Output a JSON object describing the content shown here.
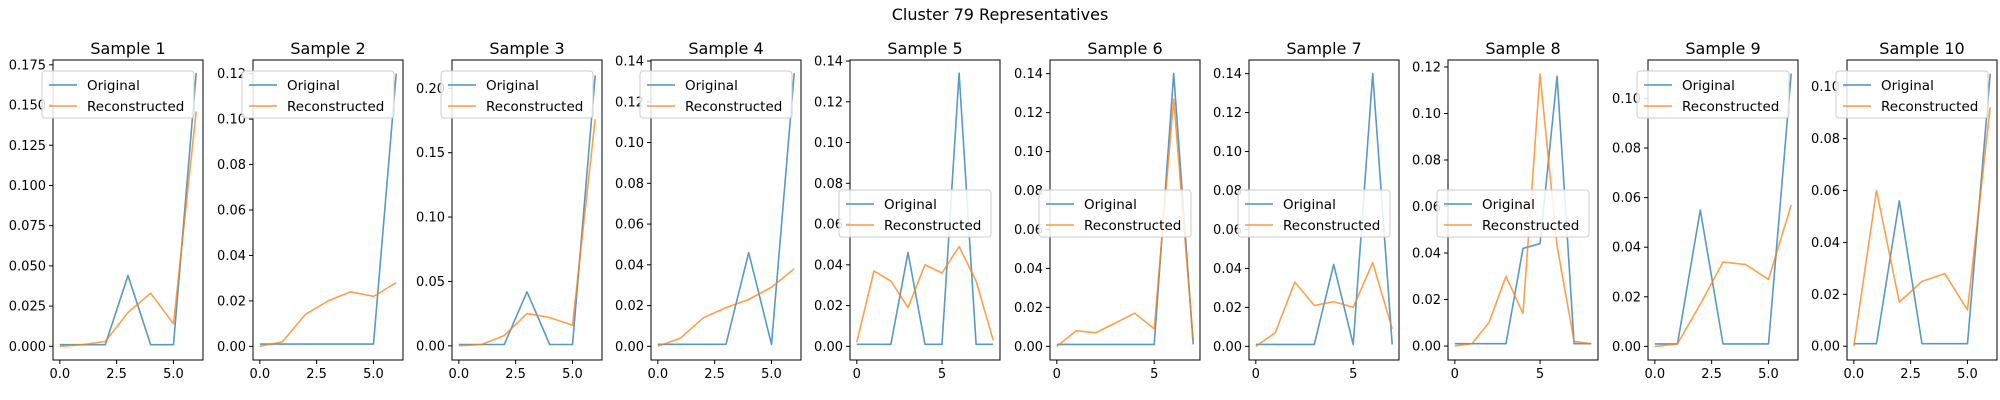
{
  "figure": {
    "title": "Cluster 79 Representatives"
  },
  "colors": {
    "original": "#1f77b4",
    "reconstructed": "#ff7f0e"
  },
  "chart_data": [
    {
      "type": "line",
      "title": "Sample 1",
      "x": [
        0,
        1,
        2,
        3,
        4,
        5,
        6
      ],
      "xlim": [
        -0.3,
        6.3
      ],
      "ylim": [
        -0.0085,
        0.178
      ],
      "xticks": [
        0,
        2.5,
        5
      ],
      "xtick_labels": [
        "0.0",
        "2.5",
        "5.0"
      ],
      "yticks": [
        0,
        0.025,
        0.05,
        0.075,
        0.1,
        0.125,
        0.15,
        0.175
      ],
      "ytick_labels": [
        "0.000",
        "0.025",
        "0.050",
        "0.075",
        "0.100",
        "0.125",
        "0.150",
        "0.175"
      ],
      "legend_position": "upper-left",
      "series": [
        {
          "name": "Original",
          "values": [
            0.001,
            0.001,
            0.001,
            0.044,
            0.001,
            0.001,
            0.17
          ]
        },
        {
          "name": "Reconstructed",
          "values": [
            0.0,
            0.001,
            0.003,
            0.021,
            0.033,
            0.014,
            0.146
          ]
        }
      ]
    },
    {
      "type": "line",
      "title": "Sample 2",
      "x": [
        0,
        1,
        2,
        3,
        4,
        5,
        6
      ],
      "xlim": [
        -0.3,
        6.3
      ],
      "ylim": [
        -0.006,
        0.126
      ],
      "xticks": [
        0,
        2.5,
        5
      ],
      "xtick_labels": [
        "0.0",
        "2.5",
        "5.0"
      ],
      "yticks": [
        0,
        0.02,
        0.04,
        0.06,
        0.08,
        0.1,
        0.12
      ],
      "ytick_labels": [
        "0.00",
        "0.02",
        "0.04",
        "0.06",
        "0.08",
        "0.10",
        "0.12"
      ],
      "legend_position": "upper-left",
      "series": [
        {
          "name": "Original",
          "values": [
            0.001,
            0.001,
            0.001,
            0.001,
            0.001,
            0.001,
            0.12
          ]
        },
        {
          "name": "Reconstructed",
          "values": [
            0.0,
            0.002,
            0.014,
            0.02,
            0.024,
            0.022,
            0.028
          ]
        }
      ]
    },
    {
      "type": "line",
      "title": "Sample 3",
      "x": [
        0,
        1,
        2,
        3,
        4,
        5,
        6
      ],
      "xlim": [
        -0.3,
        6.3
      ],
      "ylim": [
        -0.011,
        0.222
      ],
      "xticks": [
        0,
        2.5,
        5
      ],
      "xtick_labels": [
        "0.0",
        "2.5",
        "5.0"
      ],
      "yticks": [
        0,
        0.05,
        0.1,
        0.15,
        0.2
      ],
      "ytick_labels": [
        "0.00",
        "0.05",
        "0.10",
        "0.15",
        "0.20"
      ],
      "legend_position": "upper-left",
      "series": [
        {
          "name": "Original",
          "values": [
            0.001,
            0.001,
            0.001,
            0.042,
            0.001,
            0.001,
            0.21
          ]
        },
        {
          "name": "Reconstructed",
          "values": [
            0.0,
            0.001,
            0.008,
            0.025,
            0.022,
            0.016,
            0.176
          ]
        }
      ]
    },
    {
      "type": "line",
      "title": "Sample 4",
      "x": [
        0,
        1,
        2,
        3,
        4,
        5,
        6
      ],
      "xlim": [
        -0.3,
        6.3
      ],
      "ylim": [
        -0.0067,
        0.1405
      ],
      "xticks": [
        0,
        2.5,
        5
      ],
      "xtick_labels": [
        "0.0",
        "2.5",
        "5.0"
      ],
      "yticks": [
        0,
        0.02,
        0.04,
        0.06,
        0.08,
        0.1,
        0.12,
        0.14
      ],
      "ytick_labels": [
        "0.00",
        "0.02",
        "0.04",
        "0.06",
        "0.08",
        "0.10",
        "0.12",
        "0.14"
      ],
      "legend_position": "upper-left",
      "series": [
        {
          "name": "Original",
          "values": [
            0.001,
            0.001,
            0.001,
            0.001,
            0.046,
            0.001,
            0.134
          ]
        },
        {
          "name": "Reconstructed",
          "values": [
            0.0,
            0.004,
            0.014,
            0.019,
            0.023,
            0.029,
            0.038
          ]
        }
      ]
    },
    {
      "type": "line",
      "title": "Sample 5",
      "x": [
        0,
        1,
        2,
        3,
        4,
        5,
        6,
        7,
        8
      ],
      "xlim": [
        -0.4,
        8.4
      ],
      "ylim": [
        -0.0067,
        0.1405
      ],
      "xticks": [
        0,
        5
      ],
      "xtick_labels": [
        "0",
        "5"
      ],
      "yticks": [
        0,
        0.02,
        0.04,
        0.06,
        0.08,
        0.1,
        0.12,
        0.14
      ],
      "ytick_labels": [
        "0.00",
        "0.02",
        "0.04",
        "0.06",
        "0.08",
        "0.10",
        "0.12",
        "0.14"
      ],
      "legend_position": "center-left",
      "series": [
        {
          "name": "Original",
          "values": [
            0.001,
            0.001,
            0.001,
            0.046,
            0.001,
            0.001,
            0.134,
            0.001,
            0.001
          ]
        },
        {
          "name": "Reconstructed",
          "values": [
            0.002,
            0.037,
            0.032,
            0.019,
            0.04,
            0.036,
            0.049,
            0.032,
            0.003
          ]
        }
      ]
    },
    {
      "type": "line",
      "title": "Sample 6",
      "x": [
        0,
        1,
        2,
        3,
        4,
        5,
        6,
        7
      ],
      "xlim": [
        -0.35,
        7.35
      ],
      "ylim": [
        -0.007,
        0.147
      ],
      "xticks": [
        0,
        5
      ],
      "xtick_labels": [
        "0",
        "5"
      ],
      "yticks": [
        0,
        0.02,
        0.04,
        0.06,
        0.08,
        0.1,
        0.12,
        0.14
      ],
      "ytick_labels": [
        "0.00",
        "0.02",
        "0.04",
        "0.06",
        "0.08",
        "0.10",
        "0.12",
        "0.14"
      ],
      "legend_position": "center-left",
      "series": [
        {
          "name": "Original",
          "values": [
            0.001,
            0.001,
            0.001,
            0.001,
            0.001,
            0.001,
            0.14,
            0.001
          ]
        },
        {
          "name": "Reconstructed",
          "values": [
            0.0,
            0.008,
            0.007,
            0.012,
            0.017,
            0.009,
            0.127,
            0.003
          ]
        }
      ]
    },
    {
      "type": "line",
      "title": "Sample 7",
      "x": [
        0,
        1,
        2,
        3,
        4,
        5,
        6,
        7
      ],
      "xlim": [
        -0.35,
        7.35
      ],
      "ylim": [
        -0.007,
        0.147
      ],
      "xticks": [
        0,
        5
      ],
      "xtick_labels": [
        "0",
        "5"
      ],
      "yticks": [
        0,
        0.02,
        0.04,
        0.06,
        0.08,
        0.1,
        0.12,
        0.14
      ],
      "ytick_labels": [
        "0.00",
        "0.02",
        "0.04",
        "0.06",
        "0.08",
        "0.10",
        "0.12",
        "0.14"
      ],
      "legend_position": "center-left",
      "series": [
        {
          "name": "Original",
          "values": [
            0.001,
            0.001,
            0.001,
            0.001,
            0.042,
            0.001,
            0.14,
            0.001
          ]
        },
        {
          "name": "Reconstructed",
          "values": [
            0.0,
            0.007,
            0.033,
            0.021,
            0.023,
            0.02,
            0.043,
            0.009
          ]
        }
      ]
    },
    {
      "type": "line",
      "title": "Sample 8",
      "x": [
        0,
        1,
        2,
        3,
        4,
        5,
        6,
        7,
        8
      ],
      "xlim": [
        -0.4,
        8.4
      ],
      "ylim": [
        -0.006,
        0.123
      ],
      "xticks": [
        0,
        5
      ],
      "xtick_labels": [
        "0",
        "5"
      ],
      "yticks": [
        0,
        0.02,
        0.04,
        0.06,
        0.08,
        0.1,
        0.12
      ],
      "ytick_labels": [
        "0.00",
        "0.02",
        "0.04",
        "0.06",
        "0.08",
        "0.10",
        "0.12"
      ],
      "legend_position": "center-left",
      "series": [
        {
          "name": "Original",
          "values": [
            0.001,
            0.001,
            0.001,
            0.001,
            0.042,
            0.044,
            0.116,
            0.001,
            0.001
          ]
        },
        {
          "name": "Reconstructed",
          "values": [
            0.0,
            0.001,
            0.01,
            0.03,
            0.014,
            0.117,
            0.043,
            0.002,
            0.001
          ]
        }
      ]
    },
    {
      "type": "line",
      "title": "Sample 9",
      "x": [
        0,
        1,
        2,
        3,
        4,
        5,
        6
      ],
      "xlim": [
        -0.3,
        6.3
      ],
      "ylim": [
        -0.0055,
        0.1155
      ],
      "xticks": [
        0,
        2.5,
        5
      ],
      "xtick_labels": [
        "0.0",
        "2.5",
        "5.0"
      ],
      "yticks": [
        0,
        0.02,
        0.04,
        0.06,
        0.08,
        0.1
      ],
      "ytick_labels": [
        "0.00",
        "0.02",
        "0.04",
        "0.06",
        "0.08",
        "0.10"
      ],
      "legend_position": "upper-left",
      "series": [
        {
          "name": "Original",
          "values": [
            0.001,
            0.001,
            0.055,
            0.001,
            0.001,
            0.001,
            0.11
          ]
        },
        {
          "name": "Reconstructed",
          "values": [
            0.0,
            0.001,
            0.017,
            0.034,
            0.033,
            0.027,
            0.057
          ]
        }
      ]
    },
    {
      "type": "line",
      "title": "Sample 10",
      "x": [
        0,
        1,
        2,
        3,
        4,
        5,
        6
      ],
      "xlim": [
        -0.3,
        6.3
      ],
      "ylim": [
        -0.0053,
        0.1103
      ],
      "xticks": [
        0,
        2.5,
        5
      ],
      "xtick_labels": [
        "0.0",
        "2.5",
        "5.0"
      ],
      "yticks": [
        0,
        0.02,
        0.04,
        0.06,
        0.08,
        0.1
      ],
      "ytick_labels": [
        "0.00",
        "0.02",
        "0.04",
        "0.06",
        "0.08",
        "0.10"
      ],
      "legend_position": "upper-left",
      "series": [
        {
          "name": "Original",
          "values": [
            0.001,
            0.001,
            0.056,
            0.001,
            0.001,
            0.001,
            0.105
          ]
        },
        {
          "name": "Reconstructed",
          "values": [
            0.0,
            0.06,
            0.017,
            0.025,
            0.028,
            0.014,
            0.092
          ]
        }
      ]
    }
  ]
}
